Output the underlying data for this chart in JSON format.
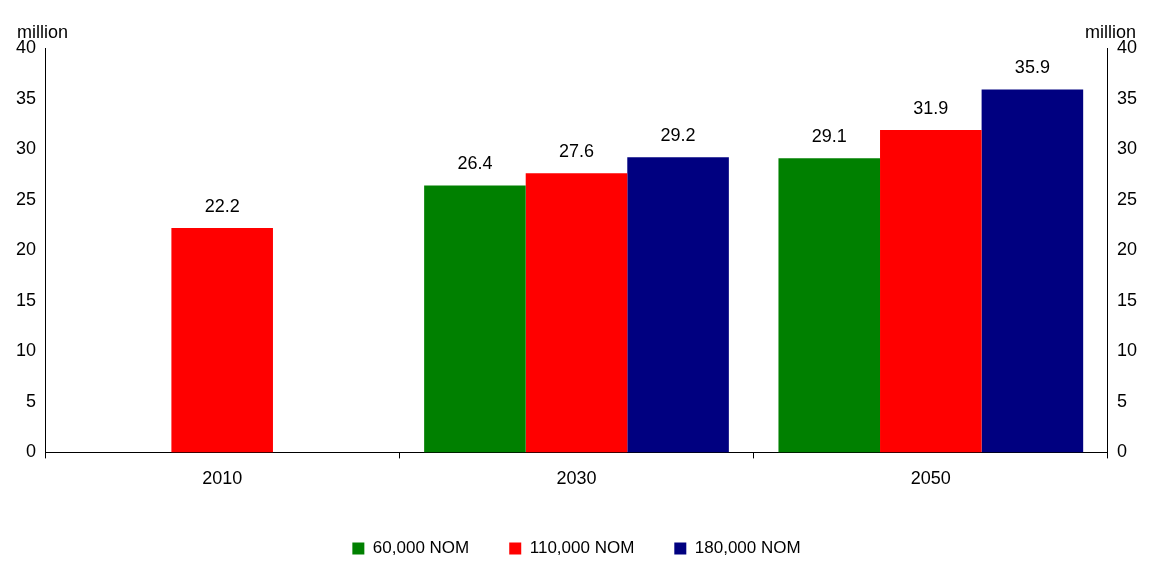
{
  "chart_data": {
    "type": "bar",
    "categories": [
      "2010",
      "2030",
      "2050"
    ],
    "series": [
      {
        "name": "60,000 NOM",
        "color": "#008000",
        "values": [
          null,
          26.4,
          29.1
        ]
      },
      {
        "name": "110,000 NOM",
        "color": "#ff0000",
        "values": [
          22.2,
          27.6,
          31.9
        ]
      },
      {
        "name": "180,000 NOM",
        "color": "#000080",
        "values": [
          null,
          29.2,
          35.9
        ]
      }
    ],
    "ylabel": "million",
    "y2label": "million",
    "ylim": [
      0,
      40
    ],
    "yticks": [
      0,
      5,
      10,
      15,
      20,
      25,
      30,
      35,
      40
    ],
    "y2lim": [
      0,
      40
    ],
    "y2ticks": [
      0,
      5,
      10,
      15,
      20,
      25,
      30,
      35,
      40
    ],
    "data_labels": true,
    "legend": "bottom",
    "grid": false
  }
}
